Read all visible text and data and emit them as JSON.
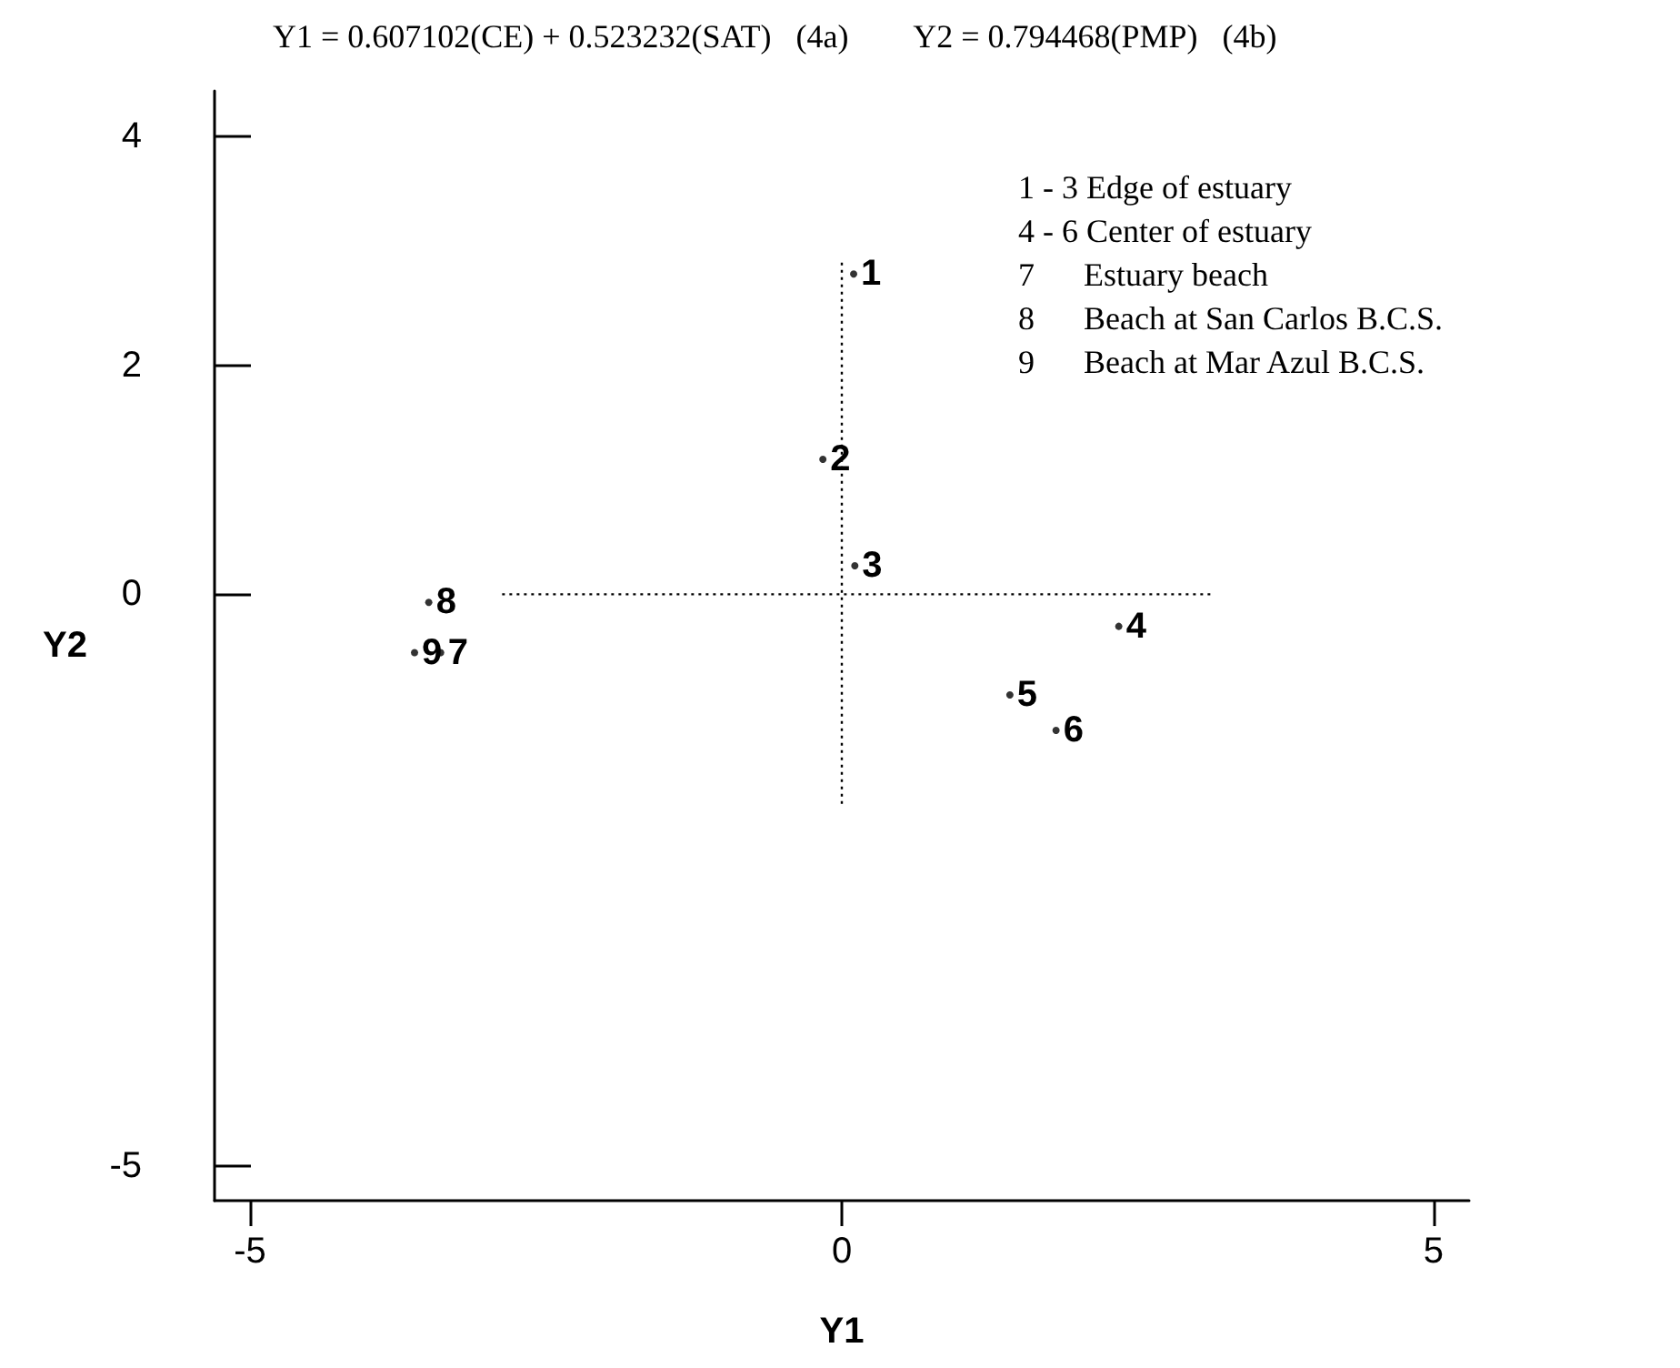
{
  "chart_data": {
    "type": "scatter",
    "title": "Y1 = 0.607102(CE) + 0.523232(SAT)   (4a)        Y2 = 0.794468(PMP)   (4b)",
    "xlabel": "Y1",
    "ylabel": "Y2",
    "xlim": [
      -5.3,
      5.3
    ],
    "ylim": [
      -5.3,
      4.4
    ],
    "xticks": [
      -5,
      0,
      5
    ],
    "yticks": [
      -5,
      0,
      2,
      4
    ],
    "grid": false,
    "series": [
      {
        "marker": "circle",
        "color": "#000000",
        "x": [
          0.1,
          -0.16,
          0.11,
          2.34,
          1.42,
          1.81,
          -3.39,
          -3.49,
          -3.61
        ],
        "values": [
          2.8,
          1.18,
          0.25,
          -0.28,
          -0.88,
          -1.19,
          -0.51,
          -0.07,
          -0.51
        ]
      },
      {
        "type": "line",
        "line_style": "dotted",
        "marker": "none",
        "color": "#000000",
        "x": [
          0,
          0
        ],
        "values": [
          2.9,
          -1.84
        ]
      },
      {
        "type": "line",
        "line_style": "dotted",
        "marker": "none",
        "color": "#000000",
        "x": [
          -2.87,
          3.15
        ],
        "values": [
          0,
          0
        ]
      }
    ],
    "annotations": [
      "1 - 3 Edge of estuary",
      "4 - 6 Center of estuary",
      "7      Estuary beach",
      "8      Beach at San Carlos B.C.S.",
      "9      Beach at Mar Azul B.C.S.",
      {
        "text": "1",
        "x": 0.1,
        "y": 2.8
      },
      {
        "text": "2",
        "x": -0.16,
        "y": 1.18
      },
      {
        "text": "3",
        "x": 0.11,
        "y": 0.25
      },
      {
        "text": "4",
        "x": 2.34,
        "y": -0.28
      },
      {
        "text": "5",
        "x": 1.42,
        "y": -0.88
      },
      {
        "text": "6",
        "x": 1.81,
        "y": -1.19
      },
      {
        "text": "7",
        "x": -3.39,
        "y": -0.51
      },
      {
        "text": "8",
        "x": -3.49,
        "y": -0.07
      },
      {
        "text": "9",
        "x": -3.61,
        "y": -0.51
      }
    ]
  }
}
